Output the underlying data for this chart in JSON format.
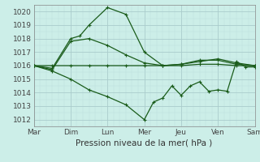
{
  "background_color": "#cceee8",
  "grid_color_major": "#aacccc",
  "grid_color_minor": "#bbdddd",
  "line_color": "#1a5c1a",
  "title": "Pression niveau de la mer( hPa )",
  "ylim": [
    1011.5,
    1020.5
  ],
  "yticks": [
    1012,
    1013,
    1014,
    1015,
    1016,
    1017,
    1018,
    1019,
    1020
  ],
  "days": [
    "Mar",
    "Dim",
    "Lun",
    "Mer",
    "Jeu",
    "Ven",
    "Sam"
  ],
  "line1": {
    "x": [
      0,
      0.5,
      1.0,
      1.25,
      1.5,
      2.0,
      2.5,
      3.0,
      3.5,
      4.0,
      4.5,
      5.0,
      5.5,
      6.0
    ],
    "y": [
      1016.0,
      1015.8,
      1018.0,
      1018.2,
      1019.0,
      1020.3,
      1019.8,
      1017.0,
      1016.0,
      1016.1,
      1016.3,
      1016.5,
      1016.2,
      1016.0
    ]
  },
  "line2": {
    "x": [
      0,
      0.5,
      1.0,
      1.5,
      2.0,
      2.5,
      3.0,
      3.5,
      4.0,
      4.5,
      5.0,
      5.5,
      6.0
    ],
    "y": [
      1016.0,
      1015.7,
      1017.8,
      1018.0,
      1017.5,
      1016.8,
      1016.2,
      1016.0,
      1016.1,
      1016.4,
      1016.4,
      1016.1,
      1016.0
    ]
  },
  "line3": {
    "x": [
      0,
      0.5,
      1.0,
      1.5,
      2.0,
      2.5,
      3.0,
      3.25,
      3.5,
      3.75,
      4.0,
      4.25,
      4.5,
      4.75,
      5.0,
      5.25,
      5.5,
      5.75,
      6.0
    ],
    "y": [
      1016.0,
      1015.6,
      1015.0,
      1014.2,
      1013.7,
      1013.1,
      1012.0,
      1013.3,
      1013.6,
      1014.5,
      1013.8,
      1014.5,
      1014.8,
      1014.1,
      1014.2,
      1014.1,
      1016.3,
      1015.9,
      1015.9
    ]
  },
  "line4": {
    "x": [
      0,
      0.5,
      1.0,
      1.5,
      2.0,
      2.5,
      3.0,
      3.5,
      4.0,
      4.5,
      5.0,
      5.5,
      6.0
    ],
    "y": [
      1016.0,
      1016.0,
      1016.0,
      1016.0,
      1016.0,
      1016.0,
      1016.0,
      1016.0,
      1016.0,
      1016.1,
      1016.1,
      1016.0,
      1016.0
    ]
  },
  "marker": "+",
  "markersize": 3,
  "linewidth": 0.9
}
